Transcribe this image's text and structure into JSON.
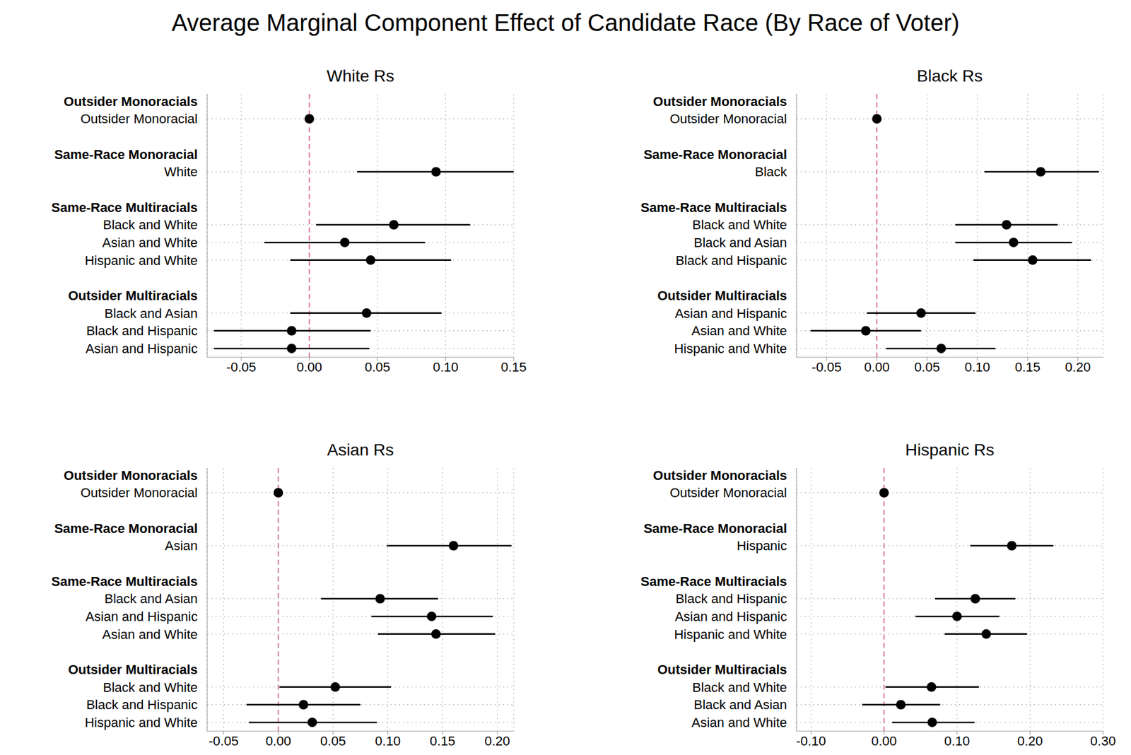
{
  "title": "Average Marginal Component Effect of Candidate Race (By Race of Voter)",
  "chart_data": [
    {
      "type": "scatter",
      "title": "White Rs",
      "orientation": "horizontal",
      "grid": true,
      "color": "#000000",
      "reference_x": 0,
      "xlim": [
        -0.075,
        0.15
      ],
      "xticks": [
        -0.05,
        {
          "value": 0,
          "label": "0.00"
        },
        0.05,
        {
          "value": 0.1,
          "label": "0.10"
        },
        0.15
      ],
      "groups": [
        {
          "name": "Outsider Monoracials",
          "categories": [
            "Outsider Monoracial"
          ],
          "values": [
            0
          ],
          "ci_low": [
            null
          ],
          "ci_high": [
            null
          ]
        },
        {
          "name": "Same-Race Monoracial",
          "categories": [
            "White"
          ],
          "values": [
            0.093
          ],
          "ci_low": [
            0.035
          ],
          "ci_high": [
            0.15
          ]
        },
        {
          "name": "Same-Race Multiracials",
          "categories": [
            "Black and White",
            "Asian and White",
            "Hispanic and White"
          ],
          "values": [
            0.062,
            0.026,
            0.045
          ],
          "ci_low": [
            0.005,
            -0.033,
            -0.014
          ],
          "ci_high": [
            0.118,
            0.085,
            0.104
          ]
        },
        {
          "name": "Outsider Multiracials",
          "categories": [
            "Black and Asian",
            "Black and Hispanic",
            "Asian and Hispanic"
          ],
          "values": [
            0.042,
            -0.013,
            -0.013
          ],
          "ci_low": [
            -0.014,
            -0.07,
            -0.07
          ],
          "ci_high": [
            0.097,
            0.045,
            0.044
          ]
        }
      ]
    },
    {
      "type": "scatter",
      "title": "Black Rs",
      "orientation": "horizontal",
      "grid": true,
      "color": "#000000",
      "reference_x": 0,
      "xlim": [
        -0.08,
        0.225
      ],
      "xticks": [
        -0.05,
        {
          "value": 0,
          "label": "0.00"
        },
        0.05,
        {
          "value": 0.1,
          "label": "0.10"
        },
        0.15,
        {
          "value": 0.2,
          "label": "0.20"
        }
      ],
      "groups": [
        {
          "name": "Outsider Monoracials",
          "categories": [
            "Outsider Monoracial"
          ],
          "values": [
            0
          ],
          "ci_low": [
            null
          ],
          "ci_high": [
            null
          ]
        },
        {
          "name": "Same-Race Monoracial",
          "categories": [
            "Black"
          ],
          "values": [
            0.163
          ],
          "ci_low": [
            0.107
          ],
          "ci_high": [
            0.221
          ]
        },
        {
          "name": "Same-Race Multiracials",
          "categories": [
            "Black and White",
            "Black and Asian",
            "Black and Hispanic"
          ],
          "values": [
            0.129,
            0.136,
            0.155
          ],
          "ci_low": [
            0.078,
            0.078,
            0.096
          ],
          "ci_high": [
            0.18,
            0.194,
            0.213
          ]
        },
        {
          "name": "Outsider Multiracials",
          "categories": [
            "Asian and Hispanic",
            "Asian and White",
            "Hispanic and White"
          ],
          "values": [
            0.044,
            -0.011,
            0.064
          ],
          "ci_low": [
            -0.01,
            -0.066,
            0.009
          ],
          "ci_high": [
            0.098,
            0.044,
            0.118
          ]
        }
      ]
    },
    {
      "type": "scatter",
      "title": "Asian Rs",
      "orientation": "horizontal",
      "grid": true,
      "color": "#000000",
      "reference_x": 0,
      "xlim": [
        -0.065,
        0.215
      ],
      "xticks": [
        -0.05,
        {
          "value": 0,
          "label": "0.00"
        },
        0.05,
        {
          "value": 0.1,
          "label": "0.10"
        },
        0.15,
        {
          "value": 0.2,
          "label": "0.20"
        }
      ],
      "groups": [
        {
          "name": "Outsider Monoracials",
          "categories": [
            "Outsider Monoracial"
          ],
          "values": [
            0
          ],
          "ci_low": [
            null
          ],
          "ci_high": [
            null
          ]
        },
        {
          "name": "Same-Race Monoracial",
          "categories": [
            "Asian"
          ],
          "values": [
            0.16
          ],
          "ci_low": [
            0.099
          ],
          "ci_high": [
            0.213
          ]
        },
        {
          "name": "Same-Race Multiracials",
          "categories": [
            "Black and Asian",
            "Asian and Hispanic",
            "Asian and White"
          ],
          "values": [
            0.093,
            0.14,
            0.144
          ],
          "ci_low": [
            0.039,
            0.085,
            0.091
          ],
          "ci_high": [
            0.146,
            0.196,
            0.198
          ]
        },
        {
          "name": "Outsider Multiracials",
          "categories": [
            "Black and White",
            "Black and Hispanic",
            "Hispanic and White"
          ],
          "values": [
            0.052,
            0.023,
            0.031
          ],
          "ci_low": [
            0.001,
            -0.029,
            -0.027
          ],
          "ci_high": [
            0.103,
            0.075,
            0.09
          ]
        }
      ]
    },
    {
      "type": "scatter",
      "title": "Hispanic Rs",
      "orientation": "horizontal",
      "grid": true,
      "color": "#000000",
      "reference_x": 0,
      "xlim": [
        -0.12,
        0.3
      ],
      "xticks": [
        {
          "value": -0.1,
          "label": "-0.10"
        },
        {
          "value": 0,
          "label": "0.00"
        },
        {
          "value": 0.1,
          "label": "0.10"
        },
        {
          "value": 0.2,
          "label": "0.20"
        },
        {
          "value": 0.3,
          "label": "0.30"
        }
      ],
      "groups": [
        {
          "name": "Outsider Monoracials",
          "categories": [
            "Outsider Monoracial"
          ],
          "values": [
            0
          ],
          "ci_low": [
            null
          ],
          "ci_high": [
            null
          ]
        },
        {
          "name": "Same-Race Monoracial",
          "categories": [
            "Hispanic"
          ],
          "values": [
            0.175
          ],
          "ci_low": [
            0.118
          ],
          "ci_high": [
            0.232
          ]
        },
        {
          "name": "Same-Race Multiracials",
          "categories": [
            "Black and Hispanic",
            "Asian and Hispanic",
            "Hispanic and White"
          ],
          "values": [
            0.125,
            0.1,
            0.14
          ],
          "ci_low": [
            0.07,
            0.043,
            0.083
          ],
          "ci_high": [
            0.18,
            0.158,
            0.196
          ]
        },
        {
          "name": "Outsider Multiracials",
          "categories": [
            "Black and White",
            "Black and Asian",
            "Asian and White"
          ],
          "values": [
            0.065,
            0.023,
            0.066
          ],
          "ci_low": [
            0.002,
            -0.03,
            0.011
          ],
          "ci_high": [
            0.13,
            0.077,
            0.124
          ]
        }
      ]
    }
  ]
}
